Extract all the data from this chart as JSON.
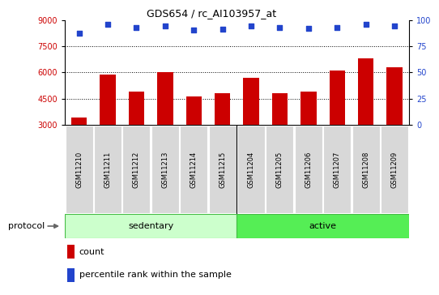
{
  "title": "GDS654 / rc_AI103957_at",
  "samples": [
    "GSM11210",
    "GSM11211",
    "GSM11212",
    "GSM11213",
    "GSM11214",
    "GSM11215",
    "GSM11204",
    "GSM11205",
    "GSM11206",
    "GSM11207",
    "GSM11208",
    "GSM11209"
  ],
  "count_values": [
    3400,
    5850,
    4900,
    6000,
    4600,
    4800,
    5700,
    4800,
    4900,
    6100,
    6800,
    6300
  ],
  "percentile_values": [
    87,
    96,
    93,
    94,
    90,
    91,
    94,
    93,
    92,
    93,
    96,
    94
  ],
  "ylim_left": [
    3000,
    9000
  ],
  "ylim_right": [
    0,
    100
  ],
  "yticks_left": [
    3000,
    4500,
    6000,
    7500,
    9000
  ],
  "yticks_right": [
    0,
    25,
    50,
    75,
    100
  ],
  "grid_yticks": [
    4500,
    6000,
    7500
  ],
  "bar_color": "#cc0000",
  "dot_color": "#2244cc",
  "dot_size": 14,
  "bar_width": 0.55,
  "bar_bottom": 3000,
  "tick_color_left": "#cc0000",
  "tick_color_right": "#2244cc",
  "sedentary_color": "#ccffcc",
  "active_color": "#55ee55",
  "label_box_color": "#d8d8d8",
  "title_fontsize": 9,
  "tick_fontsize": 7,
  "sample_fontsize": 6,
  "proto_fontsize": 8,
  "legend_fontsize": 8
}
